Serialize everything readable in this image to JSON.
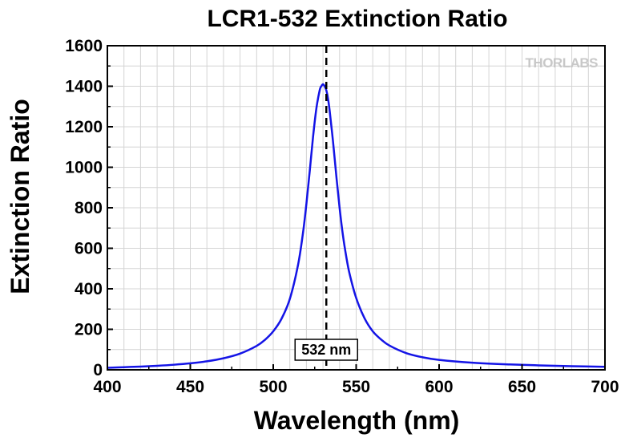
{
  "chart_data": {
    "type": "line",
    "title": "LCR1-532 Extinction Ratio",
    "xlabel": "Wavelength (nm)",
    "ylabel": "Extinction Ratio",
    "xlim": [
      400,
      700
    ],
    "ylim": [
      0,
      1600
    ],
    "xticks": [
      400,
      450,
      500,
      550,
      600,
      650,
      700
    ],
    "yticks": [
      0,
      200,
      400,
      600,
      800,
      1000,
      1200,
      1400,
      1600
    ],
    "grid": true,
    "annotation": {
      "label": "532 nm",
      "x": 532,
      "style": "dashed vertical line"
    },
    "watermark": "THORLABS",
    "series": [
      {
        "color": "#1414e6",
        "x": [
          400,
          410,
          420,
          430,
          440,
          450,
          460,
          470,
          480,
          490,
          495,
          500,
          505,
          510,
          515,
          518,
          520,
          522,
          524,
          526,
          528,
          529,
          530,
          531,
          532,
          533,
          534,
          536,
          538,
          540,
          542,
          544,
          546,
          550,
          555,
          560,
          565,
          570,
          580,
          590,
          600,
          620,
          640,
          660,
          680,
          700
        ],
        "y": [
          10,
          13,
          16,
          20,
          25,
          32,
          42,
          57,
          80,
          118,
          148,
          190,
          252,
          350,
          520,
          680,
          820,
          980,
          1150,
          1290,
          1380,
          1400,
          1410,
          1400,
          1380,
          1340,
          1280,
          1130,
          960,
          800,
          665,
          560,
          475,
          355,
          255,
          190,
          150,
          120,
          83,
          62,
          49,
          35,
          27,
          22,
          18,
          15
        ]
      }
    ]
  }
}
